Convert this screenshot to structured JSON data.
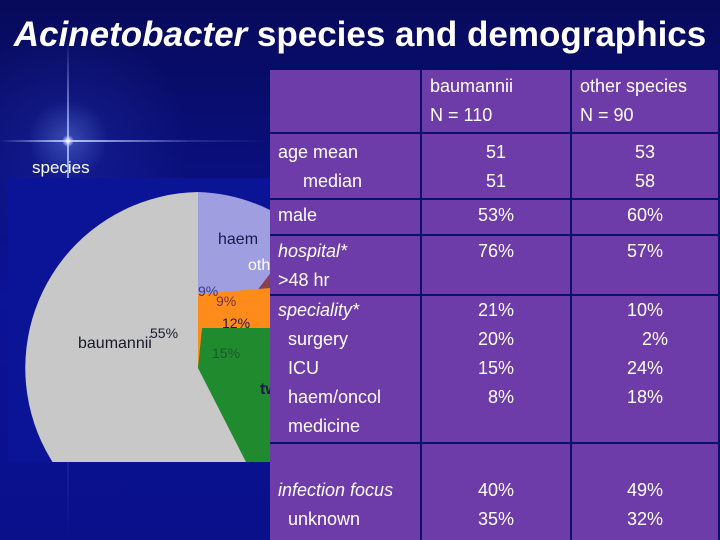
{
  "title": {
    "italic": "Acinetobacter",
    "rest": " species and demographics"
  },
  "pie": {
    "label": "species",
    "slices": [
      {
        "name": "baumannii",
        "pct": "55%",
        "color": "#c8c8c8"
      },
      {
        "name": "haem",
        "pct": "9%",
        "color": "#9e9ee0"
      },
      {
        "name": "oth",
        "pct": "9%",
        "color": "#8a4050"
      },
      {
        "name": "",
        "pct": "12%",
        "color": "#ff8c1a"
      },
      {
        "name": "tw",
        "pct": "15%",
        "color": "#1f8a2e"
      }
    ]
  },
  "table": {
    "header": {
      "baumannii": [
        "baumannii",
        "N = 110"
      ],
      "other": [
        "other species",
        "N = 90"
      ]
    },
    "rows": [
      {
        "label": [
          "age mean",
          "     median"
        ],
        "baumannii": [
          "51",
          "51"
        ],
        "other": [
          "53",
          "58"
        ]
      },
      {
        "label": [
          "male"
        ],
        "baumannii": [
          "53%"
        ],
        "other": [
          "60%"
        ]
      },
      {
        "label": [
          "hospital*",
          ">48 hr"
        ],
        "baumannii": [
          "",
          "76%"
        ],
        "other": [
          "",
          "57%"
        ]
      },
      {
        "label": [
          "speciality*",
          "  surgery",
          "  ICU",
          "  haem/oncol",
          "  medicine"
        ],
        "baumannii": [
          "",
          "21%",
          "20%",
          "15%",
          "  8%"
        ],
        "other": [
          "",
          "10%",
          "    2%",
          "24%",
          "18%"
        ]
      },
      {
        "label": [
          "infection focus",
          "  unknown"
        ],
        "baumannii": [
          "40%",
          "35%"
        ],
        "other": [
          "49%",
          "32%"
        ]
      }
    ]
  }
}
